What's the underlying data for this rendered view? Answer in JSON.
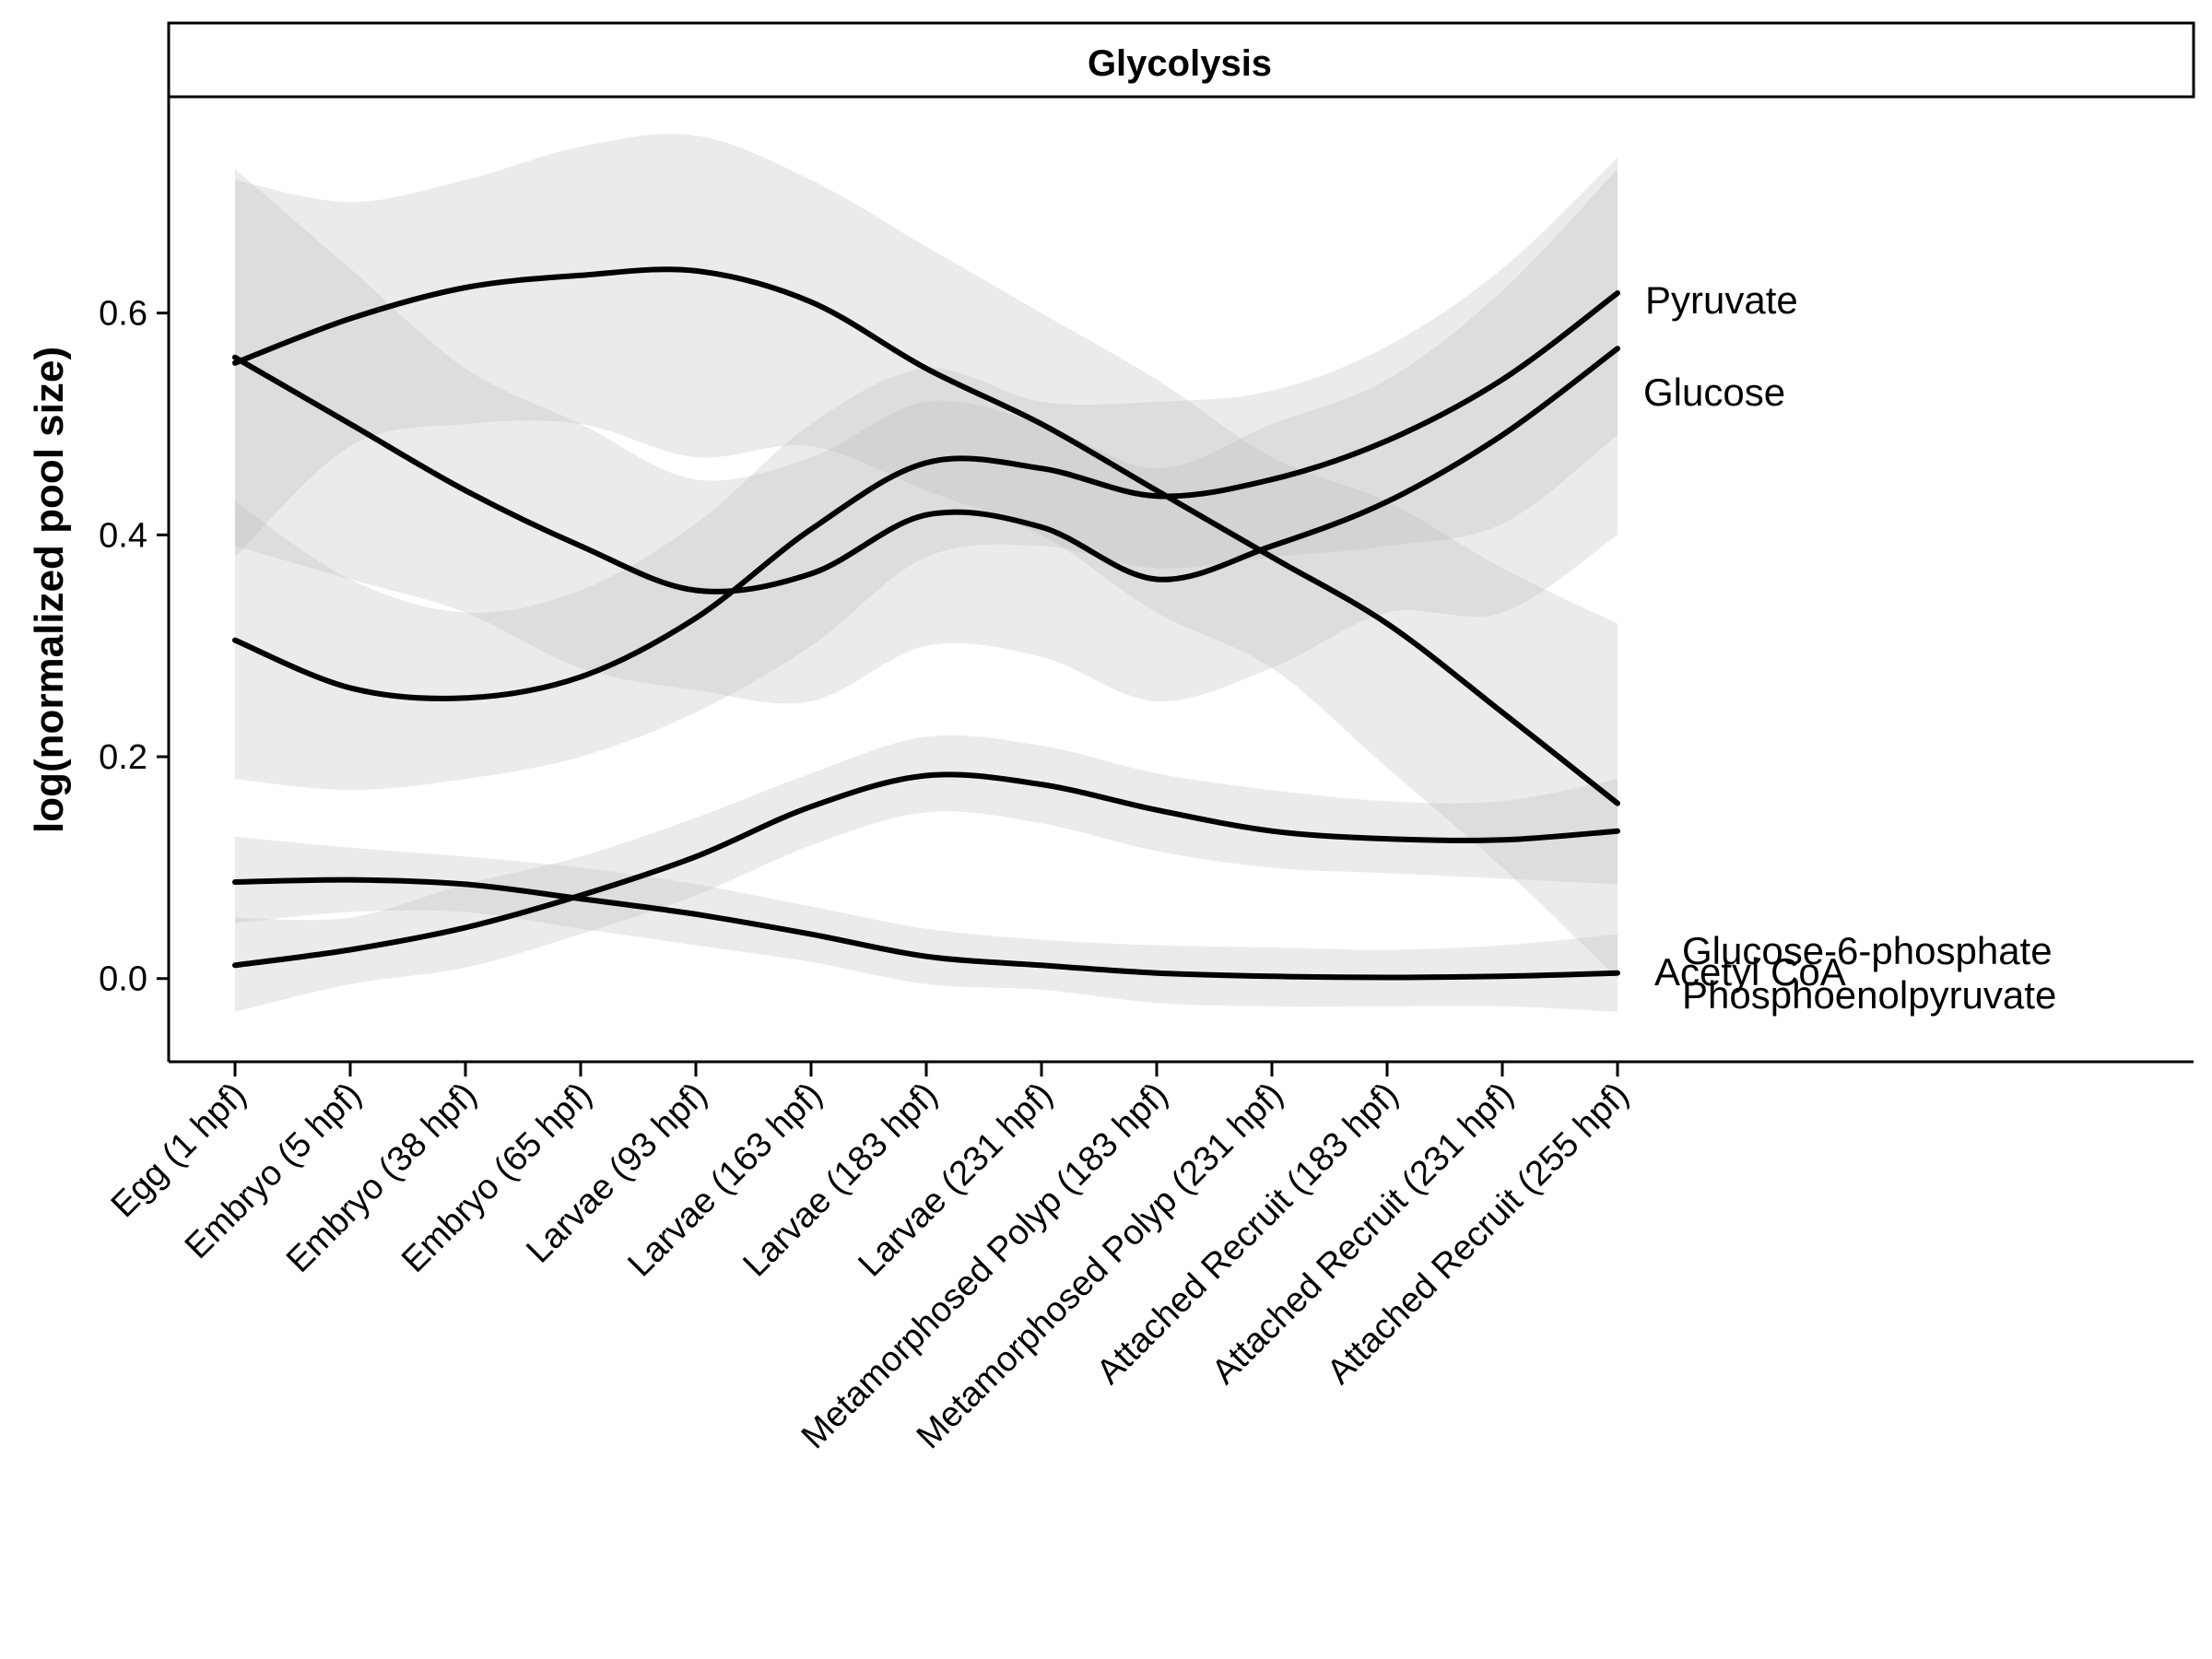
{
  "colors": {
    "line": "#000000",
    "ribbon": "#bdbdbd",
    "axis": "#000000",
    "background": "#ffffff"
  },
  "chart_data": {
    "type": "line",
    "title": "Glycolysis",
    "xlabel": "",
    "ylabel": "log(normalized pool size)",
    "ylim": [
      -0.075,
      0.795
    ],
    "yticks": [
      0.0,
      0.2,
      0.4,
      0.6
    ],
    "ytick_labels": [
      "0.0",
      "0.2",
      "0.4",
      "0.6"
    ],
    "grid": false,
    "legend": "direct labels at right end of each line",
    "categories": [
      "Egg (1 hpf)",
      "Embryo (5 hpf)",
      "Embryo (38 hpf)",
      "Embryo (65 hpf)",
      "Larvae (93 hpf)",
      "Larvae (163 hpf)",
      "Larvae (183 hpf)",
      "Larvae (231 hpf)",
      "Metamorphosed Polyp (183 hpf)",
      "Metamorphosed Polyp (231 hpf)",
      "Attached Recruit (183 hpf)",
      "Attached Recruit (231 hpf)",
      "Attached Recruit (255 hpf)"
    ],
    "series": [
      {
        "name": "Pyruvate",
        "values": [
          0.305,
          0.262,
          0.253,
          0.272,
          0.325,
          0.405,
          0.465,
          0.46,
          0.435,
          0.45,
          0.485,
          0.54,
          0.618
        ],
        "lower": [
          0.18,
          0.17,
          0.18,
          0.2,
          0.24,
          0.3,
          0.38,
          0.39,
          0.37,
          0.38,
          0.39,
          0.41,
          0.49
        ],
        "upper": [
          0.43,
          0.36,
          0.33,
          0.35,
          0.41,
          0.5,
          0.55,
          0.52,
          0.52,
          0.53,
          0.57,
          0.64,
          0.74
        ]
      },
      {
        "name": "Glucose",
        "values": [
          0.56,
          0.5,
          0.44,
          0.39,
          0.35,
          0.365,
          0.418,
          0.407,
          0.36,
          0.39,
          0.43,
          0.49,
          0.568
        ],
        "lower": [
          0.39,
          0.36,
          0.33,
          0.28,
          0.26,
          0.25,
          0.3,
          0.29,
          0.25,
          0.28,
          0.33,
          0.33,
          0.4
        ],
        "upper": [
          0.73,
          0.64,
          0.55,
          0.5,
          0.45,
          0.47,
          0.52,
          0.5,
          0.46,
          0.5,
          0.54,
          0.62,
          0.73
        ]
      },
      {
        "name": "Glucose-6-phosphate",
        "values": [
          0.555,
          0.595,
          0.623,
          0.634,
          0.638,
          0.61,
          0.55,
          0.5,
          0.44,
          0.38,
          0.32,
          0.24,
          0.158
        ],
        "lower": [
          0.38,
          0.48,
          0.5,
          0.5,
          0.47,
          0.48,
          0.44,
          0.4,
          0.33,
          0.28,
          0.19,
          0.1,
          0.0
        ],
        "upper": [
          0.72,
          0.7,
          0.72,
          0.75,
          0.76,
          0.72,
          0.66,
          0.6,
          0.54,
          0.47,
          0.43,
          0.37,
          0.32
        ]
      },
      {
        "name": "Phosphoenolpyruvate",
        "values": [
          0.012,
          0.026,
          0.046,
          0.075,
          0.11,
          0.155,
          0.183,
          0.175,
          0.152,
          0.133,
          0.126,
          0.125,
          0.133
        ],
        "lower": [
          -0.03,
          -0.005,
          0.01,
          0.04,
          0.075,
          0.12,
          0.15,
          0.14,
          0.115,
          0.1,
          0.095,
          0.09,
          0.085
        ],
        "upper": [
          0.055,
          0.055,
          0.085,
          0.11,
          0.145,
          0.185,
          0.218,
          0.21,
          0.185,
          0.17,
          0.16,
          0.16,
          0.18
        ]
      },
      {
        "name": "Acetyl CoA",
        "values": [
          0.087,
          0.089,
          0.085,
          0.072,
          0.058,
          0.04,
          0.02,
          0.012,
          0.005,
          0.002,
          0.001,
          0.002,
          0.005
        ],
        "lower": [
          0.05,
          0.06,
          0.06,
          0.045,
          0.03,
          0.015,
          -0.005,
          -0.01,
          -0.022,
          -0.025,
          -0.025,
          -0.025,
          -0.03
        ],
        "upper": [
          0.128,
          0.118,
          0.11,
          0.1,
          0.085,
          0.065,
          0.045,
          0.035,
          0.03,
          0.028,
          0.026,
          0.03,
          0.04
        ]
      }
    ]
  }
}
